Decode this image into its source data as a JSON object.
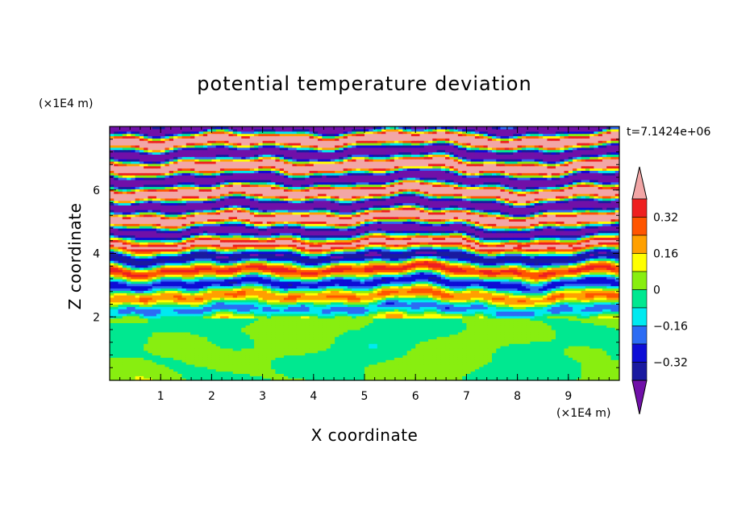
{
  "chart_data": {
    "type": "heatmap",
    "title": "potential temperature deviation",
    "xlabel": "X coordinate",
    "ylabel": "Z coordinate",
    "x_unit": "(×1E4 m)",
    "y_unit": "(×1E4 m)",
    "time_label": "t=7.1424e+06",
    "xlim": [
      0,
      10
    ],
    "ylim": [
      0,
      8
    ],
    "x_ticks": [
      "1",
      "2",
      "3",
      "4",
      "5",
      "6",
      "7",
      "8",
      "9"
    ],
    "y_ticks": [
      "2",
      "4",
      "6"
    ],
    "colorbar": {
      "levels": [
        -0.4,
        -0.32,
        -0.24,
        -0.16,
        -0.08,
        0,
        0.08,
        0.16,
        0.24,
        0.32,
        0.4
      ],
      "labels": [
        "0.32",
        "0.16",
        "0",
        "−0.16",
        "−0.32"
      ],
      "label_values": [
        0.32,
        0.16,
        0,
        -0.16,
        -0.32
      ],
      "colors_low_to_high": [
        "#1a1aa0",
        "#0d0dd6",
        "#2c6cf4",
        "#00eaf0",
        "#00e890",
        "#88ee10",
        "#ffff00",
        "#ffa000",
        "#ff5500",
        "#ee2020"
      ],
      "under_color": "#7010a8",
      "over_color": "#f2a6a6"
    },
    "field_description_levels": {
      "z_0_to_2": "mostly near-zero: green and yellow-green",
      "z_2_to_5": "layered bands spanning full range",
      "z_5_to_8": "alternating strong positive (pink) and strong negative (purple) layers"
    }
  }
}
